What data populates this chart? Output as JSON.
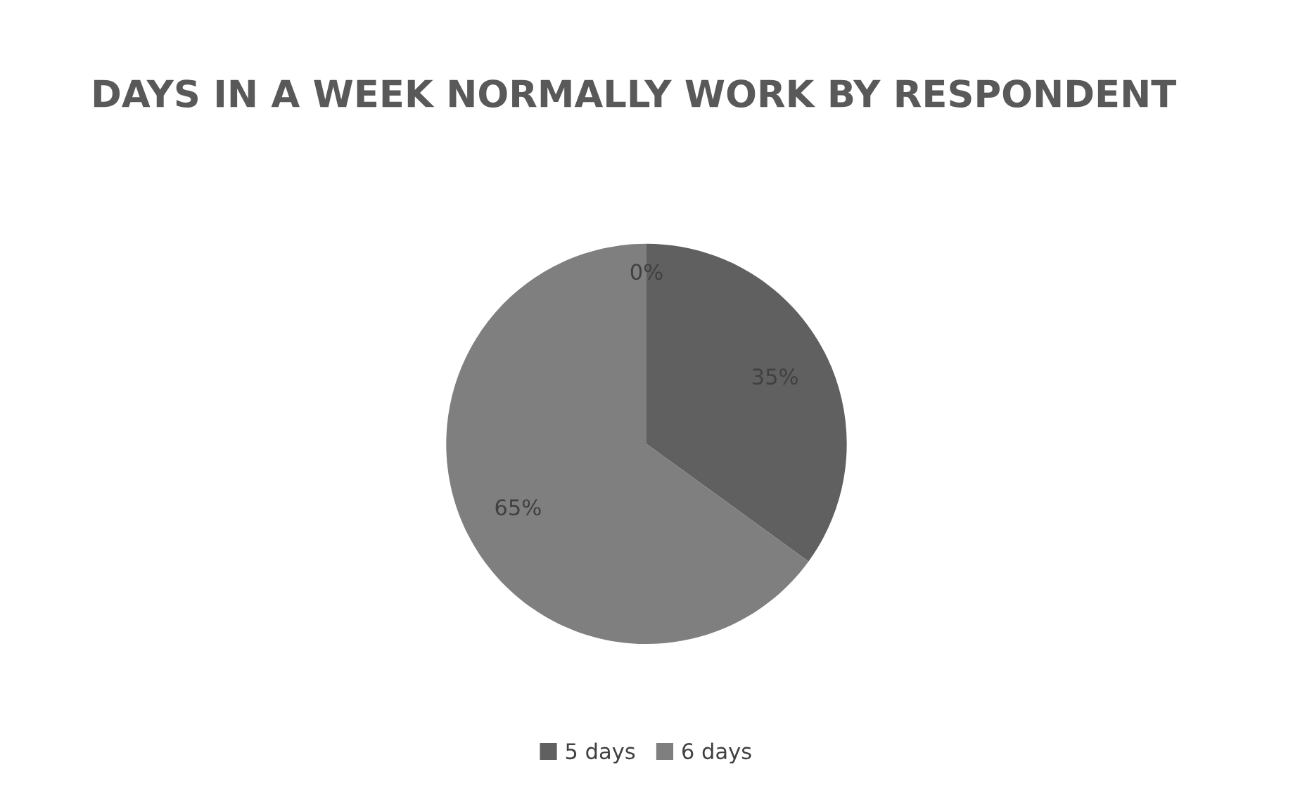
{
  "chart_data": {
    "type": "pie",
    "title": "DAYS IN A WEEK NORMALLY WORK BY RESPONDENT",
    "categories": [
      "5 days",
      "6 days",
      null
    ],
    "values": [
      35,
      65,
      0
    ],
    "colors": [
      "#606060",
      "#7f7f7f",
      "#a0a0a0"
    ],
    "value_labels": [
      "35%",
      "65%",
      "0%"
    ],
    "legend": "bottom"
  }
}
